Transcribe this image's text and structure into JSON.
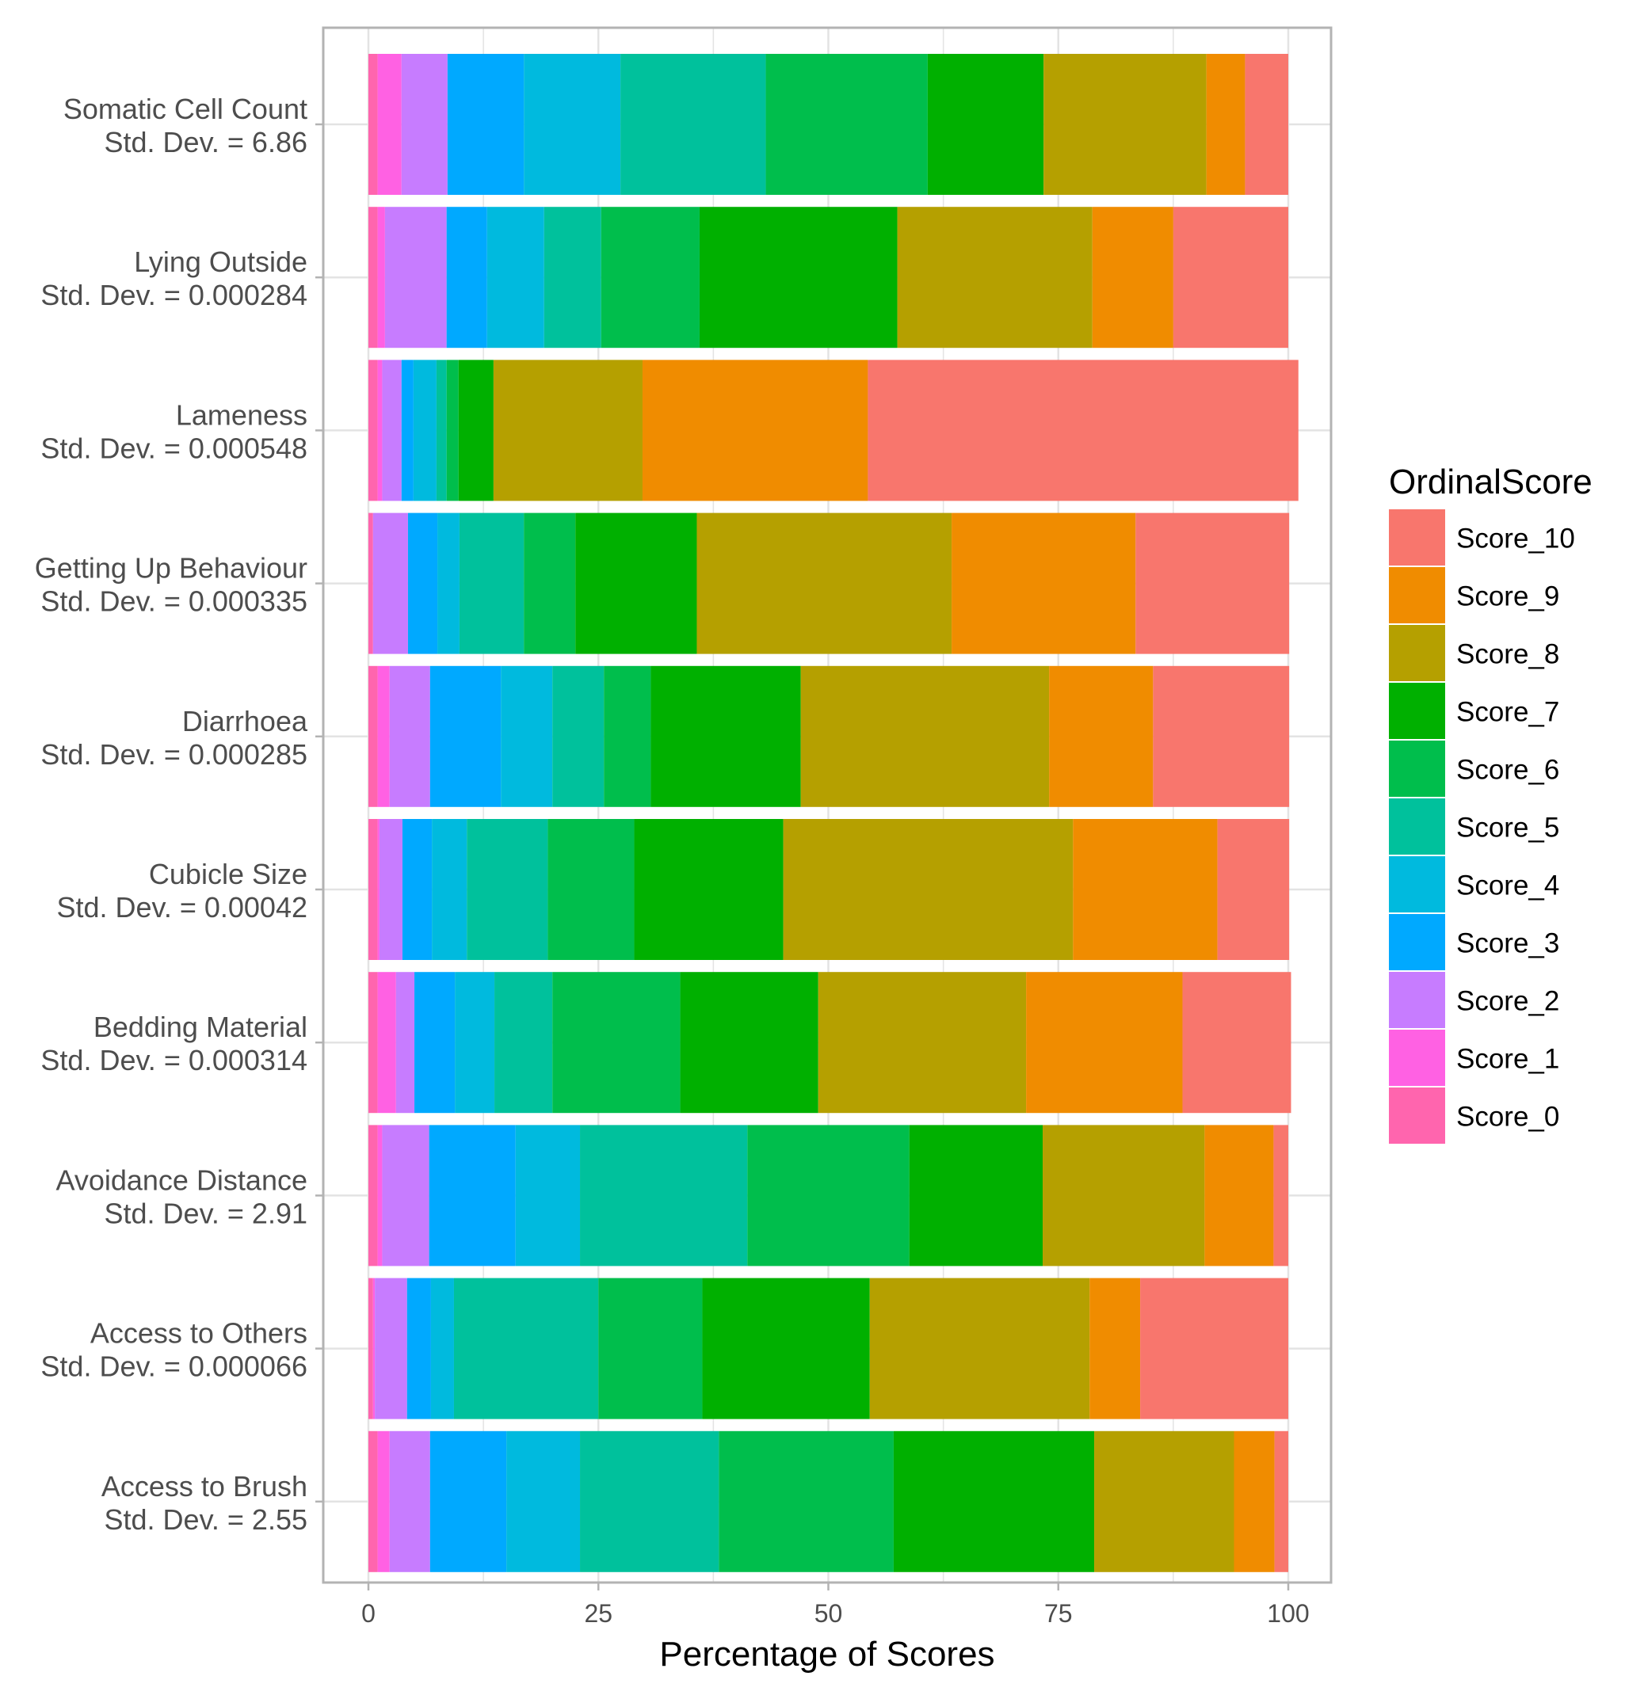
{
  "chart_data": {
    "type": "bar",
    "orientation": "horizontal",
    "stacked": true,
    "title": "",
    "xlabel": "Percentage of Scores",
    "ylabel": "",
    "xlim": [
      0,
      100
    ],
    "xticks": [
      0,
      25,
      50,
      75,
      100
    ],
    "grid": true,
    "legend_position": "right",
    "legend_title": "OrdinalScore",
    "legend_entries": [
      "Score_10",
      "Score_9",
      "Score_8",
      "Score_7",
      "Score_6",
      "Score_5",
      "Score_4",
      "Score_3",
      "Score_2",
      "Score_1",
      "Score_0"
    ],
    "colors": {
      "Score_0": "#FF65AE",
      "Score_1": "#FF61E3",
      "Score_2": "#C77CFF",
      "Score_3": "#00A9FF",
      "Score_4": "#00BADE",
      "Score_5": "#00C19C",
      "Score_6": "#00BE4C",
      "Score_7": "#00B000",
      "Score_8": "#B5A000",
      "Score_9": "#F08C00",
      "Score_10": "#F8766D"
    },
    "stack_order": [
      "Score_0",
      "Score_1",
      "Score_2",
      "Score_3",
      "Score_4",
      "Score_5",
      "Score_6",
      "Score_7",
      "Score_8",
      "Score_9",
      "Score_10"
    ],
    "categories": [
      {
        "name": "Somatic Cell Count",
        "label": "Std. Dev. = 6.86",
        "values": {
          "Score_0": 1.0,
          "Score_1": 2.6,
          "Score_2": 5.0,
          "Score_3": 8.3,
          "Score_4": 10.5,
          "Score_5": 15.8,
          "Score_6": 17.6,
          "Score_7": 12.6,
          "Score_8": 17.7,
          "Score_9": 4.2,
          "Score_10": 4.7
        }
      },
      {
        "name": "Lying Outside",
        "label": "Std. Dev. = 0.000284",
        "values": {
          "Score_0": 1.0,
          "Score_1": 0.8,
          "Score_2": 6.7,
          "Score_3": 4.4,
          "Score_4": 6.2,
          "Score_5": 6.2,
          "Score_6": 10.7,
          "Score_7": 21.5,
          "Score_8": 21.2,
          "Score_9": 8.8,
          "Score_10": 12.5
        }
      },
      {
        "name": "Lameness",
        "label": "Std. Dev. = 0.000548",
        "values": {
          "Score_0": 1.0,
          "Score_1": 0.5,
          "Score_2": 2.1,
          "Score_3": 1.3,
          "Score_4": 2.5,
          "Score_5": 1.1,
          "Score_6": 1.3,
          "Score_7": 3.8,
          "Score_8": 16.2,
          "Score_9": 24.5,
          "Score_10": 46.8
        }
      },
      {
        "name": "Getting Up Behaviour",
        "label": "Std. Dev. = 0.000335",
        "values": {
          "Score_0": 0.5,
          "Score_1": 0.0,
          "Score_2": 3.8,
          "Score_3": 3.2,
          "Score_4": 2.4,
          "Score_5": 7.0,
          "Score_6": 5.6,
          "Score_7": 13.2,
          "Score_8": 27.7,
          "Score_9": 20.0,
          "Score_10": 16.7
        }
      },
      {
        "name": "Diarrhoea",
        "label": "Std. Dev. = 0.000285",
        "values": {
          "Score_0": 1.0,
          "Score_1": 1.3,
          "Score_2": 4.4,
          "Score_3": 7.7,
          "Score_4": 5.6,
          "Score_5": 5.6,
          "Score_6": 5.1,
          "Score_7": 16.3,
          "Score_8": 27.0,
          "Score_9": 11.3,
          "Score_10": 14.8
        }
      },
      {
        "name": "Cubicle Size",
        "label": "Std. Dev. = 0.00042",
        "values": {
          "Score_0": 1.0,
          "Score_1": 0.2,
          "Score_2": 2.5,
          "Score_3": 3.2,
          "Score_4": 3.8,
          "Score_5": 8.8,
          "Score_6": 9.4,
          "Score_7": 16.2,
          "Score_8": 31.5,
          "Score_9": 15.7,
          "Score_10": 7.8
        }
      },
      {
        "name": "Bedding Material",
        "label": "Std. Dev. = 0.000314",
        "values": {
          "Score_0": 1.0,
          "Score_1": 2.0,
          "Score_2": 2.0,
          "Score_3": 4.4,
          "Score_4": 4.3,
          "Score_5": 6.3,
          "Score_6": 13.9,
          "Score_7": 15.0,
          "Score_8": 22.6,
          "Score_9": 17.0,
          "Score_10": 11.8
        }
      },
      {
        "name": "Avoidance Distance",
        "label": "Std. Dev. = 2.91",
        "values": {
          "Score_0": 1.0,
          "Score_1": 0.5,
          "Score_2": 5.1,
          "Score_3": 9.4,
          "Score_4": 7.0,
          "Score_5": 18.2,
          "Score_6": 17.6,
          "Score_7": 14.5,
          "Score_8": 17.6,
          "Score_9": 7.5,
          "Score_10": 1.6
        }
      },
      {
        "name": "Access to Others",
        "label": "Std. Dev. = 0.000066",
        "values": {
          "Score_0": 0.5,
          "Score_1": 0.2,
          "Score_2": 3.5,
          "Score_3": 2.6,
          "Score_4": 2.5,
          "Score_5": 15.7,
          "Score_6": 11.3,
          "Score_7": 18.2,
          "Score_8": 23.9,
          "Score_9": 5.5,
          "Score_10": 16.1
        }
      },
      {
        "name": "Access to Brush",
        "label": "Std. Dev. = 2.55",
        "values": {
          "Score_0": 1.0,
          "Score_1": 1.3,
          "Score_2": 4.4,
          "Score_3": 8.3,
          "Score_4": 8.0,
          "Score_5": 15.1,
          "Score_6": 19.0,
          "Score_7": 21.8,
          "Score_8": 15.2,
          "Score_9": 4.4,
          "Score_10": 1.5
        }
      }
    ]
  }
}
